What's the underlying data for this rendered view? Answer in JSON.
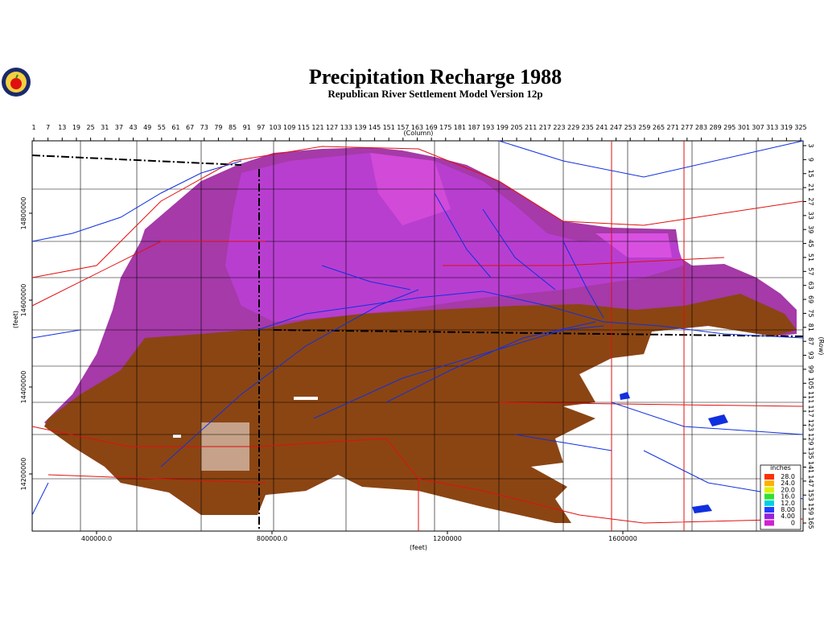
{
  "header": {
    "title": "Precipitation Recharge 1988",
    "subtitle": "Republican River Settlement Model Version 12p"
  },
  "axes": {
    "top": {
      "label": "(Column)",
      "ticks": [
        1,
        7,
        13,
        19,
        25,
        31,
        37,
        43,
        49,
        55,
        61,
        67,
        73,
        79,
        85,
        91,
        97,
        103,
        109,
        115,
        121,
        127,
        133,
        139,
        145,
        151,
        157,
        163,
        169,
        175,
        181,
        187,
        193,
        199,
        205,
        211,
        217,
        223,
        229,
        235,
        241,
        247,
        253,
        259,
        265,
        271,
        277,
        283,
        289,
        295,
        301,
        307,
        313,
        319,
        325
      ]
    },
    "right": {
      "label": "(Row)",
      "ticks": [
        3,
        9,
        15,
        21,
        27,
        33,
        39,
        45,
        51,
        57,
        63,
        69,
        75,
        81,
        87,
        93,
        99,
        105,
        111,
        117,
        123,
        129,
        135,
        141,
        147,
        153,
        159,
        165
      ]
    },
    "left": {
      "label": "(feet)",
      "ticks": [
        14800000,
        14600000,
        14400000,
        14200000
      ]
    },
    "bottom": {
      "label": "(feet)",
      "ticks": [
        {
          "value": 400000,
          "label": "400000.0"
        },
        {
          "value": 800000,
          "label": "800000.0"
        },
        1200000,
        1600000
      ]
    }
  },
  "legend": {
    "title": "inches",
    "items": [
      {
        "label": "28.0",
        "color": "#ff3000"
      },
      {
        "label": "24.0",
        "color": "#ffb000"
      },
      {
        "label": "20.0",
        "color": "#e0f000"
      },
      {
        "label": "16.0",
        "color": "#30e030"
      },
      {
        "label": "12.0",
        "color": "#00d0e0"
      },
      {
        "label": "8.00",
        "color": "#2040ff"
      },
      {
        "label": "4.00",
        "color": "#9a20e0"
      },
      {
        "label": "0",
        "color": "#d020d0"
      }
    ]
  }
}
